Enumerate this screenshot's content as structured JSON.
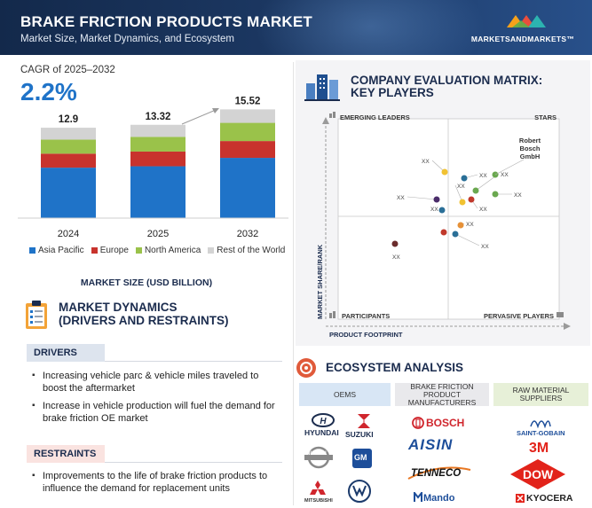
{
  "header": {
    "title": "BRAKE FRICTION PRODUCTS MARKET",
    "subtitle": "Market Size, Market Dynamics, and Ecosystem",
    "logo_text": "MARKETSANDMARKETS™"
  },
  "cagr": {
    "label": "CAGR of 2025–2032",
    "value": "2.2%"
  },
  "chart_data": {
    "type": "bar",
    "stacked": true,
    "title": "MARKET SIZE (USD BILLION)",
    "categories": [
      "2024",
      "2025",
      "2032"
    ],
    "totals": [
      12.9,
      13.32,
      15.52
    ],
    "total_labels": [
      "12.9",
      "13.32",
      "15.52"
    ],
    "series": [
      {
        "name": "Asia Pacific",
        "color": "#1f73c8",
        "values": [
          7.2,
          7.4,
          8.6
        ]
      },
      {
        "name": "Europe",
        "color": "#c8332d",
        "values": [
          2.0,
          2.1,
          2.4
        ]
      },
      {
        "name": "North America",
        "color": "#9ac24a",
        "values": [
          2.0,
          2.1,
          2.6
        ]
      },
      {
        "name": "Rest of the World",
        "color": "#d3d3d3",
        "values": [
          1.7,
          1.72,
          1.92
        ]
      }
    ],
    "legend_position": "bottom",
    "grid": false
  },
  "market_dynamics": {
    "title_line1": "MARKET DYNAMICS",
    "title_line2": "(DRIVERS AND RESTRAINTS)",
    "drivers_label": "DRIVERS",
    "drivers": [
      {
        "line1": "Increasing vehicle parc & vehicle miles traveled to",
        "line2": "boost the aftermarket"
      },
      {
        "line1": "Increase in vehicle production will fuel the demand for",
        "line2": "brake friction OE market"
      }
    ],
    "restraints_label": "RESTRAINTS",
    "restraints": [
      {
        "line1": "Improvements to the life of brake friction products to",
        "line2": "influence the demand for replacement units"
      }
    ]
  },
  "evaluation_matrix": {
    "title_line1": "COMPANY EVALUATION MATRIX:",
    "title_line2": "KEY PLAYERS",
    "quadrants": {
      "top_left": "EMERGING LEADERS",
      "top_right": "STARS",
      "bottom_left": "PARTICIPANTS",
      "bottom_right": "PERVASIVE PLAYERS"
    },
    "y_axis_label": "MARKET SHARE/RANK",
    "x_axis_label": "PRODUCT FOOTPRINT",
    "highlight_company": [
      "Robert",
      "Bosch",
      "GmbH"
    ],
    "point_label": "XX",
    "points": [
      {
        "color": "#f1c232"
      },
      {
        "color": "#2a6f97"
      },
      {
        "color": "#6aa84f"
      },
      {
        "color": "#f1c232"
      },
      {
        "color": "#c0392b"
      },
      {
        "color": "#6aa84f"
      },
      {
        "color": "#4a2c6a"
      },
      {
        "color": "#2a6f97"
      },
      {
        "color": "#e69138"
      },
      {
        "color": "#2a6f97"
      },
      {
        "color": "#c0392b"
      },
      {
        "color": "#6b2c2c"
      },
      {
        "color": "#1b2c4e"
      }
    ]
  },
  "ecosystem": {
    "title": "ECOSYSTEM ANALYSIS",
    "columns": [
      {
        "label_line1": "OEMS",
        "label_line2": "",
        "label_line3": "",
        "bg": "#d8e6f5"
      },
      {
        "label_line1": "BRAKE FRICTION",
        "label_line2": "PRODUCT",
        "label_line3": "MANUFACTURERS",
        "bg": "#e9e9ec"
      },
      {
        "label_line1": "RAW MATERIAL",
        "label_line2": "SUPPLIERS",
        "label_line3": "",
        "bg": "#e7f0d8"
      }
    ],
    "oems": [
      "HYUNDAI",
      "SUZUKI",
      "NISSAN",
      "GM",
      "MITSUBISHI"
    ],
    "manufacturers": [
      "BOSCH",
      "AISIN",
      "TENNECO",
      "Mando"
    ],
    "suppliers": [
      "SAINT-GOBAIN",
      "3M",
      "DOW",
      "KYOCERA"
    ]
  }
}
